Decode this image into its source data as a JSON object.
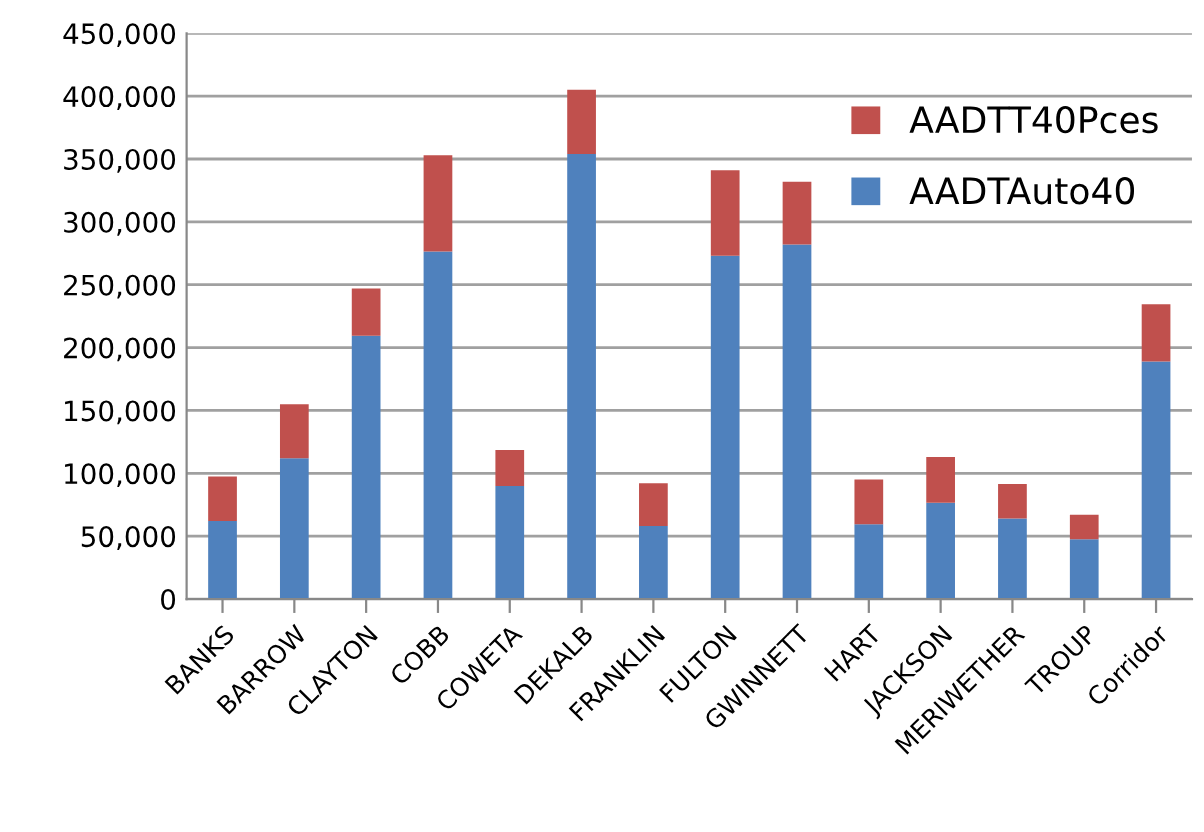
{
  "chart_data": {
    "type": "bar",
    "stacked": true,
    "categories": [
      "BANKS",
      "BARROW",
      "CLAYTON",
      "COBB",
      "COWETA",
      "DEKALB",
      "FRANKLIN",
      "FULTON",
      "GWINNETT",
      "HART",
      "JACKSON",
      "MERIWETHER",
      "TROUP",
      "Corridor"
    ],
    "series": [
      {
        "name": "AADTAuto40",
        "color": "#4f81bd",
        "values": [
          62000,
          112000,
          209500,
          276500,
          90000,
          354000,
          58000,
          273000,
          282000,
          59500,
          76500,
          64000,
          47500,
          189000
        ]
      },
      {
        "name": "AADTT40Pces",
        "color": "#c0504d",
        "values": [
          35400,
          43000,
          37500,
          76500,
          28500,
          51000,
          34000,
          68000,
          50000,
          35500,
          36500,
          27500,
          19500,
          45500
        ]
      }
    ],
    "ylim": [
      0,
      450000
    ],
    "yticks": [
      {
        "value": 0,
        "label": "0"
      },
      {
        "value": 50000,
        "label": "50,000"
      },
      {
        "value": 100000,
        "label": "100,000"
      },
      {
        "value": 150000,
        "label": "150,000"
      },
      {
        "value": 200000,
        "label": "200,000"
      },
      {
        "value": 250000,
        "label": "250,000"
      },
      {
        "value": 300000,
        "label": "300,000"
      },
      {
        "value": 350000,
        "label": "350,000"
      },
      {
        "value": 400000,
        "label": "400,000"
      },
      {
        "value": 450000,
        "label": "450,000"
      }
    ],
    "grid": "y",
    "legend": "top right"
  }
}
